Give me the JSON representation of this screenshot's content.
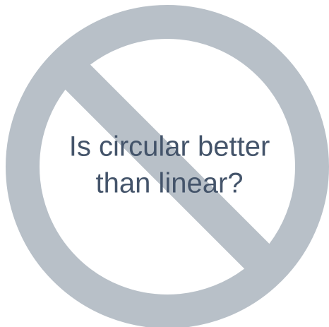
{
  "caption": {
    "lines": [
      "Is circular better",
      "than linear?"
    ]
  }
}
